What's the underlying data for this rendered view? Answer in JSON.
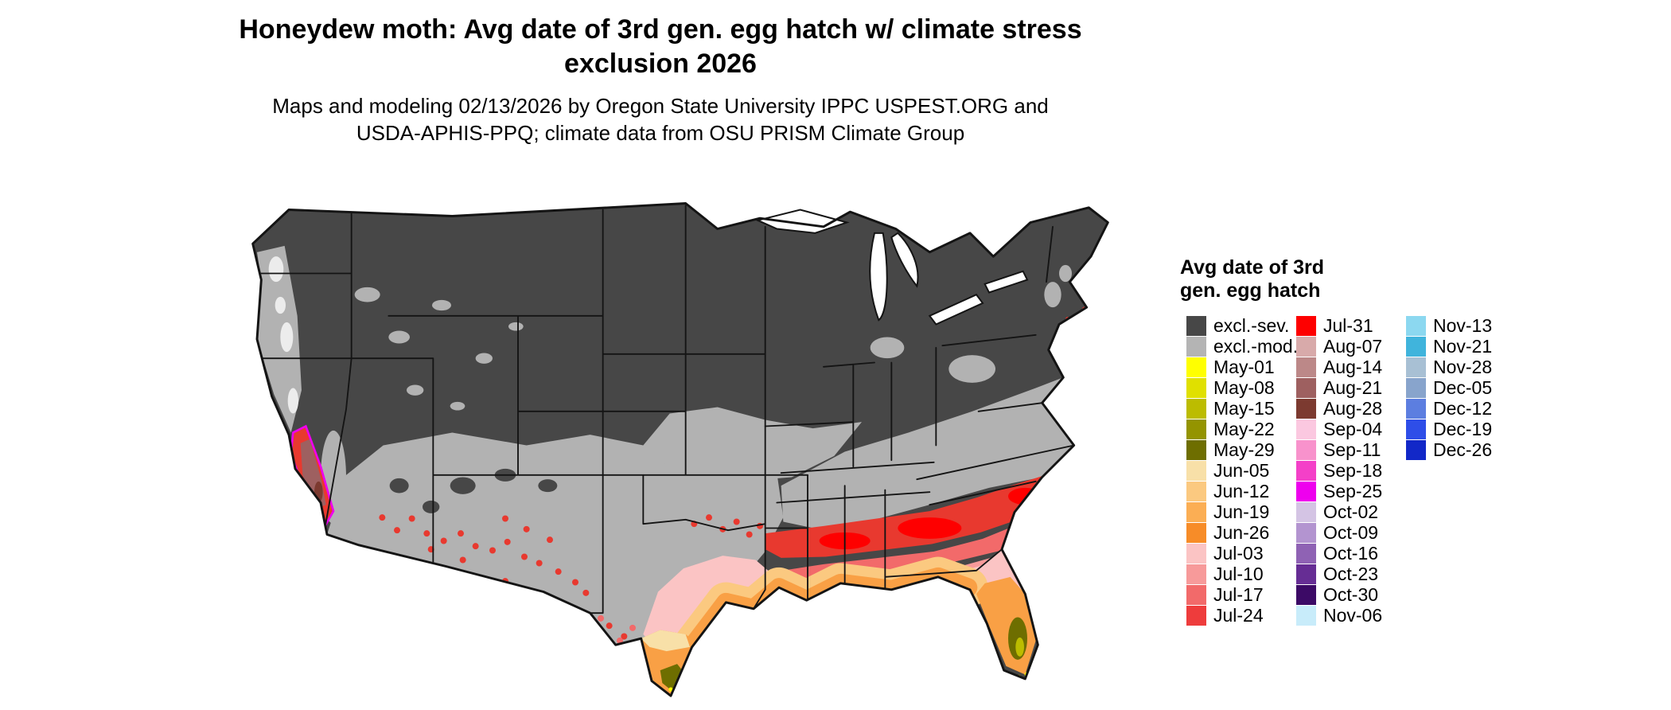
{
  "title": {
    "line1": "Honeydew moth: Avg date of 3rd gen. egg hatch w/ climate stress",
    "line2": "exclusion 2026"
  },
  "subtitle": {
    "line1": "Maps and modeling 02/13/2026 by Oregon State University IPPC USPEST.ORG and",
    "line2": "USDA-APHIS-PPQ; climate data from OSU PRISM Climate Group"
  },
  "legend": {
    "title_line1": "Avg date of 3rd",
    "title_line2": "gen. egg hatch",
    "columns": [
      15,
      15,
      7
    ],
    "entries": [
      {
        "label": "excl.-sev.",
        "color": "#474747"
      },
      {
        "label": "excl.-mod.",
        "color": "#b4b4b4"
      },
      {
        "label": "May-01",
        "color": "#ffff00"
      },
      {
        "label": "May-08",
        "color": "#e0e000"
      },
      {
        "label": "May-15",
        "color": "#bcbc00"
      },
      {
        "label": "May-22",
        "color": "#949400"
      },
      {
        "label": "May-29",
        "color": "#6e6e00"
      },
      {
        "label": "Jun-05",
        "color": "#f8e0a8"
      },
      {
        "label": "Jun-12",
        "color": "#fbc980"
      },
      {
        "label": "Jun-19",
        "color": "#fbae54"
      },
      {
        "label": "Jun-26",
        "color": "#f78c28"
      },
      {
        "label": "Jul-03",
        "color": "#fbc4c4"
      },
      {
        "label": "Jul-10",
        "color": "#f79a9a"
      },
      {
        "label": "Jul-17",
        "color": "#f26a6a"
      },
      {
        "label": "Jul-24",
        "color": "#ee3c3c"
      },
      {
        "label": "Jul-31",
        "color": "#fe0000"
      },
      {
        "label": "Aug-07",
        "color": "#d8aaaa"
      },
      {
        "label": "Aug-14",
        "color": "#bc8888"
      },
      {
        "label": "Aug-21",
        "color": "#9e6060"
      },
      {
        "label": "Aug-28",
        "color": "#7c3a30"
      },
      {
        "label": "Sep-04",
        "color": "#fbc8e0"
      },
      {
        "label": "Sep-11",
        "color": "#f892cc"
      },
      {
        "label": "Sep-18",
        "color": "#f440c8"
      },
      {
        "label": "Sep-25",
        "color": "#ee00ee"
      },
      {
        "label": "Oct-02",
        "color": "#d4c4e4"
      },
      {
        "label": "Oct-09",
        "color": "#b394d0"
      },
      {
        "label": "Oct-16",
        "color": "#8f62b4"
      },
      {
        "label": "Oct-23",
        "color": "#662d94"
      },
      {
        "label": "Oct-30",
        "color": "#3c0a66"
      },
      {
        "label": "Nov-06",
        "color": "#c8ecfa"
      },
      {
        "label": "Nov-13",
        "color": "#8cd8f0"
      },
      {
        "label": "Nov-21",
        "color": "#40b4dc"
      },
      {
        "label": "Nov-28",
        "color": "#a8c0d4"
      },
      {
        "label": "Dec-05",
        "color": "#88a4cc"
      },
      {
        "label": "Dec-12",
        "color": "#5c7ee0"
      },
      {
        "label": "Dec-19",
        "color": "#2e4ee8"
      },
      {
        "label": "Dec-26",
        "color": "#1228c8"
      }
    ]
  },
  "map_palette": {
    "excluded_severe": "#474747",
    "excluded_moderate": "#b2b2b2",
    "pale": "#ececec",
    "jul31_red": "#fe0000",
    "jul24_red": "#e8392f",
    "jul17_rose": "#f26a6a",
    "jul10_rose": "#f79a9a",
    "jul03_pink": "#fbc4c4",
    "jun26_orange": "#f78c28",
    "jun19_orange": "#f9a045",
    "jun12_orange": "#fbc980",
    "jun05_tan": "#f8e0a8",
    "may29_olive": "#6e6e00",
    "may15_olive": "#bcbc00",
    "may01_yellow": "#ffff00",
    "aug_brown": "#9e6060",
    "aug28_brown": "#7c3a30",
    "sep18_magenta": "#f440c8",
    "sep25_magenta": "#ee00ee",
    "oct09_purple": "#b394d0",
    "oct16_purple": "#8f62b4",
    "oct23_purple": "#662d94",
    "nov21_cyan": "#40b4dc",
    "dec19_blue": "#2e4ee8",
    "border": "#141414",
    "lake": "#ffffff"
  }
}
